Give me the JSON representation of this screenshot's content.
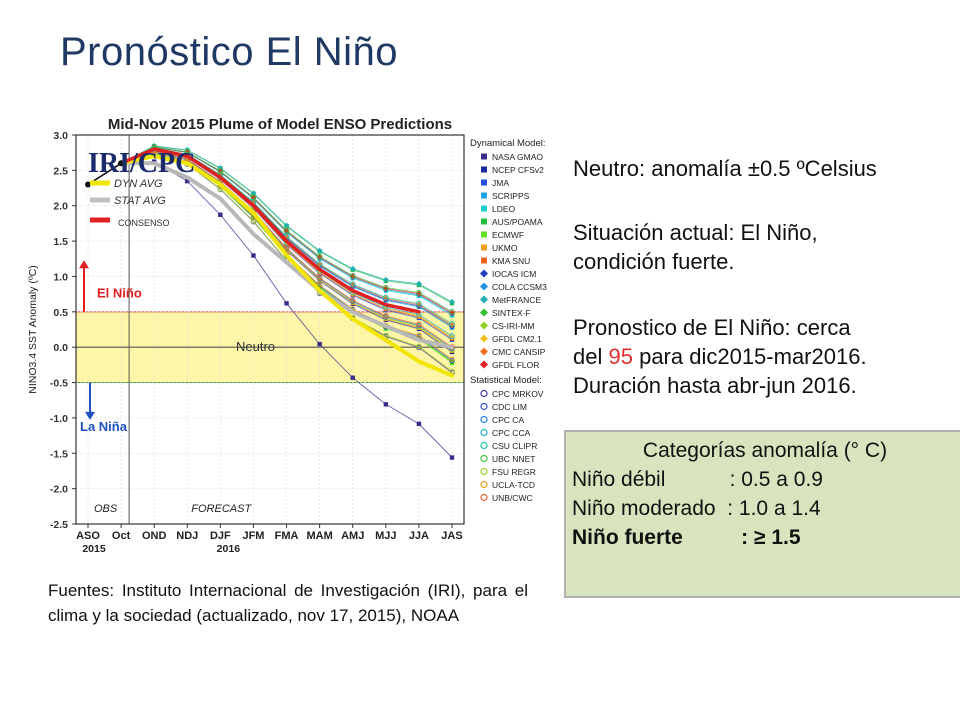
{
  "slide": {
    "title": "Pronóstico El Niño"
  },
  "chart_data": {
    "type": "line",
    "title": "Mid-Nov 2015 Plume of Model ENSO Predictions",
    "ylabel": "NINO3.4 SST Anomaly (ºC)",
    "ylim": [
      -2.5,
      3.0
    ],
    "yticks": [
      "3.0",
      "2.5",
      "2.0",
      "1.5",
      "1.0",
      "0.5",
      "0.0",
      "-0.5",
      "-1.0",
      "-1.5",
      "-2.0",
      "-2.5"
    ],
    "categories": [
      "ASO",
      "Oct",
      "OND",
      "NDJ",
      "DJF",
      "JFM",
      "FMA",
      "MAM",
      "AMJ",
      "MJJ",
      "JJA",
      "JAS"
    ],
    "year_labels": [
      "2015",
      "2016"
    ],
    "logo_text": "IRI/CPC",
    "obs_label": "OBS",
    "forecast_label": "FORECAST",
    "legend_left": [
      {
        "name": "DYN AVG",
        "color": "#f2e600"
      },
      {
        "name": "STAT AVG",
        "color": "#c0c0c0"
      },
      {
        "name": "CONSENSO",
        "color": "#e02020"
      }
    ],
    "annotations": {
      "nino": "El Niño",
      "nina": "La Niña",
      "neutral": "Neutro"
    },
    "neutral_band": [
      -0.5,
      0.5
    ],
    "observed": {
      "x": [
        0,
        1
      ],
      "values": [
        2.3,
        2.6
      ]
    },
    "consensus": {
      "color": "#e02020",
      "x": [
        1,
        2,
        3,
        4,
        5,
        6,
        7,
        8,
        9,
        10
      ],
      "values": [
        2.6,
        2.8,
        2.7,
        2.4,
        2.0,
        1.5,
        1.1,
        0.8,
        0.6,
        0.5
      ]
    },
    "dyn_avg": {
      "color": "#f2e600",
      "x": [
        1,
        2,
        3,
        4,
        5,
        6,
        7,
        8,
        9,
        10,
        11
      ],
      "values": [
        2.6,
        2.7,
        2.6,
        2.3,
        1.9,
        1.3,
        0.8,
        0.4,
        0.1,
        -0.2,
        -0.4
      ]
    },
    "stat_avg": {
      "color": "#b8b8b8",
      "x": [
        1,
        2,
        3,
        4,
        5,
        6,
        7,
        8,
        9,
        10,
        11
      ],
      "values": [
        2.6,
        2.6,
        2.4,
        2.1,
        1.6,
        1.2,
        0.8,
        0.5,
        0.3,
        0.1,
        0.0
      ]
    },
    "legend_groups": [
      {
        "header": "Dynamical Model:",
        "items": [
          {
            "name": "NASA GMAO",
            "color": "#3a2a8a",
            "marker": "square"
          },
          {
            "name": "NCEP CFSv2",
            "color": "#1a2aa0",
            "marker": "square"
          },
          {
            "name": "JMA",
            "color": "#2050e0",
            "marker": "square"
          },
          {
            "name": "SCRIPPS",
            "color": "#20a0e0",
            "marker": "square"
          },
          {
            "name": "LDEO",
            "color": "#20d0d0",
            "marker": "square"
          },
          {
            "name": "AUS/POAMA",
            "color": "#20c040",
            "marker": "square"
          },
          {
            "name": "ECMWF",
            "color": "#60e020",
            "marker": "square"
          },
          {
            "name": "UKMO",
            "color": "#f0a020",
            "marker": "square"
          },
          {
            "name": "KMA SNU",
            "color": "#f06020",
            "marker": "square"
          },
          {
            "name": "IOCAS ICM",
            "color": "#2040c0",
            "marker": "diamond"
          },
          {
            "name": "COLA CCSM3",
            "color": "#2090e0",
            "marker": "diamond"
          },
          {
            "name": "MetFRANCE",
            "color": "#20b0b0",
            "marker": "diamond"
          },
          {
            "name": "SINTEX-F",
            "color": "#30c030",
            "marker": "diamond"
          },
          {
            "name": "CS-IRI-MM",
            "color": "#90d020",
            "marker": "diamond"
          },
          {
            "name": "GFDL CM2.1",
            "color": "#f0c020",
            "marker": "diamond"
          },
          {
            "name": "CMC CANSIP",
            "color": "#f07020",
            "marker": "diamond"
          },
          {
            "name": "GFDL FLOR",
            "color": "#e02020",
            "marker": "diamond"
          }
        ]
      },
      {
        "header": "Statistical Model:",
        "items": [
          {
            "name": "CPC MRKOV",
            "color": "#4030a0",
            "marker": "circle"
          },
          {
            "name": "CDC LIM",
            "color": "#3050d0",
            "marker": "circle"
          },
          {
            "name": "CPC CA",
            "color": "#2080e0",
            "marker": "circle"
          },
          {
            "name": "CPC CCA",
            "color": "#20b0d0",
            "marker": "circle"
          },
          {
            "name": "CSU CLIPR",
            "color": "#20c0a0",
            "marker": "circle"
          },
          {
            "name": "UBC NNET",
            "color": "#40c040",
            "marker": "circle"
          },
          {
            "name": "FSU REGR",
            "color": "#a0d020",
            "marker": "circle"
          },
          {
            "name": "UCLA-TCD",
            "color": "#f0a020",
            "marker": "circle"
          },
          {
            "name": "UNB/CWC",
            "color": "#f06030",
            "marker": "circle"
          }
        ]
      }
    ]
  },
  "info": {
    "neutral": "Neutro: anomalía ±0.5 ºCelsius",
    "current_1": "Situación actual: El Niño,",
    "current_2": "condición fuerte.",
    "forecast_1": "Pronostico de El Niño: cerca",
    "forecast_2a": "del ",
    "forecast_2b": "95",
    "forecast_2c": " para dic2015-mar2016.",
    "forecast_3": "Duración hasta abr-jun 2016."
  },
  "categories_box": {
    "title": "Categorías anomalía (° C)",
    "rows": [
      {
        "label": "Niño débil           : 0.5 a 0.9"
      },
      {
        "label": "Niño moderado  : 1.0 a 1.4"
      },
      {
        "label": "Niño fuerte          : ≥ 1.5"
      }
    ]
  },
  "sources": {
    "text": "Fuentes: Instituto Internacional de Investigación (IRI), para el clima y la sociedad (actualizado, nov 17, 2015), NOAA"
  }
}
